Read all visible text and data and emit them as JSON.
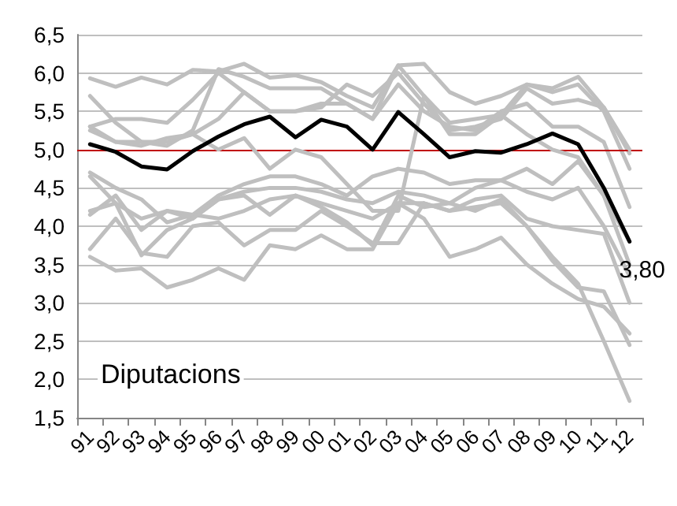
{
  "chart_data": {
    "type": "line",
    "categories": [
      "91",
      "92",
      "93",
      "94",
      "95",
      "96",
      "97",
      "98",
      "99",
      "00",
      "01",
      "02",
      "03",
      "04",
      "05",
      "06",
      "07",
      "08",
      "09",
      "10",
      "11",
      "12"
    ],
    "series": [
      {
        "color": "#bfbfbf",
        "values": [
          5.93,
          5.82,
          5.94,
          5.85,
          6.04,
          6.02,
          6.12,
          5.94,
          5.97,
          5.88,
          5.7,
          5.55,
          6.1,
          6.12,
          5.75,
          5.6,
          5.7,
          5.85,
          5.8,
          5.95,
          5.55,
          4.95
        ]
      },
      {
        "color": "#bfbfbf",
        "values": [
          5.7,
          5.35,
          5.1,
          5.05,
          5.25,
          6.05,
          5.95,
          5.8,
          5.8,
          5.8,
          5.6,
          5.4,
          5.85,
          5.5,
          5.3,
          5.25,
          5.5,
          5.6,
          5.3,
          5.3,
          5.1,
          4.25
        ]
      },
      {
        "color": "#bfbfbf",
        "values": [
          5.3,
          5.4,
          5.4,
          5.35,
          5.65,
          6.0,
          5.75,
          5.5,
          5.5,
          5.6,
          5.6,
          5.4,
          6.1,
          5.7,
          5.2,
          5.2,
          5.45,
          5.85,
          5.75,
          5.85,
          5.5,
          4.75
        ]
      },
      {
        "color": "#bfbfbf",
        "values": [
          5.25,
          5.1,
          5.1,
          5.1,
          5.2,
          5.4,
          5.75,
          5.5,
          5.5,
          5.55,
          5.85,
          5.7,
          6.0,
          5.6,
          5.25,
          5.3,
          5.4,
          5.8,
          5.6,
          5.65,
          5.55,
          5.0
        ]
      },
      {
        "color": "#bfbfbf",
        "values": [
          5.3,
          5.1,
          5.05,
          5.15,
          5.2,
          5.0,
          5.15,
          4.75,
          5.0,
          4.9,
          4.55,
          4.2,
          4.2,
          5.7,
          5.35,
          5.4,
          5.45,
          5.2,
          5.0,
          4.9,
          4.4,
          3.5
        ]
      },
      {
        "color": "#bfbfbf",
        "values": [
          4.7,
          4.5,
          4.35,
          4.05,
          4.15,
          4.4,
          4.55,
          4.65,
          4.65,
          4.55,
          4.4,
          4.65,
          4.75,
          4.7,
          4.55,
          4.6,
          4.6,
          4.75,
          4.55,
          4.85,
          4.4,
          3.8
        ]
      },
      {
        "color": "#bfbfbf",
        "values": [
          4.65,
          4.3,
          4.1,
          4.2,
          4.1,
          4.35,
          4.45,
          4.5,
          4.5,
          4.45,
          4.35,
          4.3,
          4.45,
          4.4,
          4.3,
          4.5,
          4.6,
          4.45,
          4.35,
          4.5,
          4.0,
          3.35
        ]
      },
      {
        "color": "#bfbfbf",
        "values": [
          4.15,
          4.4,
          3.95,
          4.2,
          4.15,
          4.1,
          4.2,
          4.35,
          4.4,
          4.3,
          4.2,
          4.1,
          4.3,
          4.3,
          4.2,
          4.35,
          4.4,
          4.1,
          4.0,
          3.95,
          3.9,
          3.0
        ]
      },
      {
        "color": "#bfbfbf",
        "values": [
          4.2,
          4.3,
          3.62,
          3.95,
          4.1,
          4.35,
          4.4,
          4.15,
          4.4,
          4.25,
          4.05,
          3.75,
          4.4,
          4.25,
          4.3,
          4.2,
          4.35,
          4.0,
          3.55,
          3.2,
          3.15,
          2.45
        ]
      },
      {
        "color": "#bfbfbf",
        "values": [
          3.7,
          4.1,
          3.65,
          3.6,
          4.0,
          4.05,
          3.75,
          3.95,
          3.95,
          4.2,
          4.0,
          3.78,
          3.78,
          4.3,
          4.2,
          4.25,
          4.3,
          4.0,
          3.6,
          3.25,
          2.5,
          1.72
        ]
      },
      {
        "color": "#bfbfbf",
        "values": [
          3.6,
          3.42,
          3.45,
          3.2,
          3.3,
          3.45,
          3.3,
          3.75,
          3.7,
          3.88,
          3.7,
          3.7,
          4.3,
          4.1,
          3.6,
          3.7,
          3.85,
          3.5,
          3.25,
          3.05,
          2.95,
          2.6
        ]
      },
      {
        "color": "#000000",
        "values": [
          5.07,
          4.97,
          4.78,
          4.74,
          4.98,
          5.17,
          5.33,
          5.43,
          5.16,
          5.39,
          5.3,
          5.0,
          5.49,
          5.2,
          4.9,
          4.98,
          4.96,
          5.07,
          5.21,
          5.07,
          4.5,
          3.8
        ],
        "value_labels": [
          null,
          null,
          null,
          null,
          null,
          null,
          null,
          null,
          null,
          null,
          null,
          null,
          null,
          null,
          null,
          null,
          null,
          null,
          null,
          null,
          null,
          "3,80"
        ]
      }
    ],
    "ylim": [
      1.5,
      6.5
    ],
    "yticks": [
      {
        "value": 1.5,
        "label": "1,5"
      },
      {
        "value": 2,
        "label": "2,0"
      },
      {
        "value": 2.5,
        "label": "2,5"
      },
      {
        "value": 3,
        "label": "3,0"
      },
      {
        "value": 3.5,
        "label": "3,5"
      },
      {
        "value": 4,
        "label": "4,0"
      },
      {
        "value": 4.5,
        "label": "4,5"
      },
      {
        "value": 5,
        "label": "5,0"
      },
      {
        "value": 5.5,
        "label": "5,5"
      },
      {
        "value": 6,
        "label": "6,0"
      },
      {
        "value": 6.5,
        "label": "6,5"
      }
    ],
    "ref_lines": [
      {
        "axis": "y",
        "value": 5,
        "color": "#c00000"
      }
    ],
    "annotations": [
      "Diputacions"
    ],
    "grid": "y",
    "marker": "none",
    "line_style": "solid"
  }
}
